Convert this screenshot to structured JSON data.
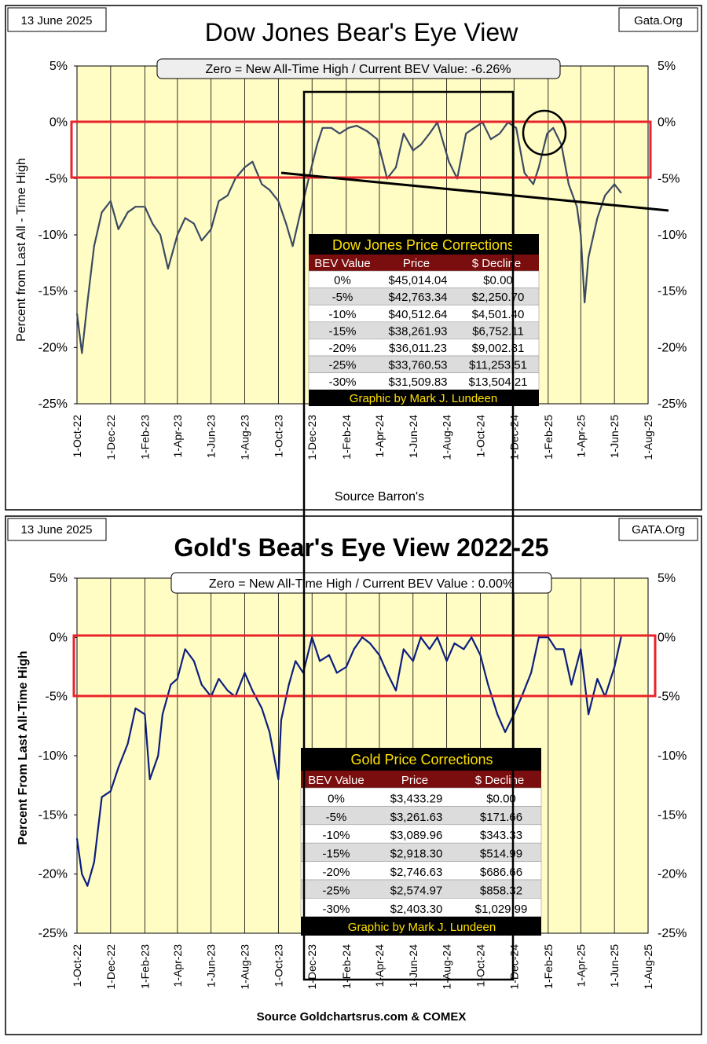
{
  "charts": {
    "dow": {
      "date": "13 June 2025",
      "source_site": "Gata.Org",
      "title": "Dow Jones Bear's Eye View",
      "subtitle": "Zero = New All-Time High / Current BEV Value:  -6.26%",
      "ylabel": "Percent  from  Last  All - Time  High",
      "footer": "Source Barron's",
      "table": {
        "title": "Dow Jones Price Corrections",
        "headers": [
          "BEV Value",
          "Price",
          "$ Decline"
        ],
        "rows": [
          [
            "0%",
            "$45,014.04",
            "$0.00"
          ],
          [
            "-5%",
            "$42,763.34",
            "$2,250.70"
          ],
          [
            "-10%",
            "$40,512.64",
            "$4,501.40"
          ],
          [
            "-15%",
            "$38,261.93",
            "$6,752.11"
          ],
          [
            "-20%",
            "$36,011.23",
            "$9,002.81"
          ],
          [
            "-25%",
            "$33,760.53",
            "$11,253.51"
          ],
          [
            "-30%",
            "$31,509.83",
            "$13,504.21"
          ]
        ],
        "footer": "Graphic by Mark J. Lundeen"
      }
    },
    "gold": {
      "date": "13 June 2025",
      "source_site": "GATA.Org",
      "title": "Gold's Bear's Eye View 2022-25",
      "subtitle": "Zero = New All-Time  High / Current  BEV Value : 0.00%",
      "ylabel": "Percent  From  Last  All-Time  High",
      "footer": "Source Goldchartsrus.com & COMEX",
      "table": {
        "title": "Gold Price Corrections",
        "headers": [
          "BEV Value",
          "Price",
          "$ Decline"
        ],
        "rows": [
          [
            "0%",
            "$3,433.29",
            "$0.00"
          ],
          [
            "-5%",
            "$3,261.63",
            "$171.66"
          ],
          [
            "-10%",
            "$3,089.96",
            "$343.33"
          ],
          [
            "-15%",
            "$2,918.30",
            "$514.99"
          ],
          [
            "-20%",
            "$2,746.63",
            "$686.66"
          ],
          [
            "-25%",
            "$2,574.97",
            "$858.32"
          ],
          [
            "-30%",
            "$2,403.30",
            "$1,029.99"
          ]
        ],
        "footer": "Graphic by Mark J. Lundeen"
      }
    }
  },
  "colors": {
    "plot_bg": "#fffdc4",
    "dow_line": "#3b4a63",
    "gold_line": "#0c1e80",
    "highlight_box": "#e8232a",
    "table_header_bg": "#7a0d0d",
    "table_title_bg": "#000000",
    "table_title_text": "#ffe100"
  },
  "chart_data": [
    {
      "type": "line",
      "title": "Dow Jones Bear's Eye View",
      "ylabel": "Percent  from  Last  All - Time  High",
      "x_ticks": [
        "1-Oct-22",
        "1-Dec-22",
        "1-Feb-23",
        "1-Apr-23",
        "1-Jun-23",
        "1-Aug-23",
        "1-Oct-23",
        "1-Dec-23",
        "1-Feb-24",
        "1-Apr-24",
        "1-Jun-24",
        "1-Aug-24",
        "1-Oct-24",
        "1-Dec-24",
        "1-Feb-25",
        "1-Apr-25",
        "1-Jun-25",
        "1-Aug-25"
      ],
      "y_ticks": [
        "5%",
        "0%",
        "-5%",
        "-10%",
        "-15%",
        "-20%",
        "-25%"
      ],
      "ylim": [
        -25,
        5
      ],
      "series": [
        {
          "x": [
            "2022-10-01",
            "2022-10-10",
            "2022-10-20",
            "2022-11-01",
            "2022-11-15",
            "2022-12-01",
            "2022-12-15",
            "2023-01-01",
            "2023-01-15",
            "2023-02-01",
            "2023-02-15",
            "2023-03-01",
            "2023-03-15",
            "2023-04-01",
            "2023-04-15",
            "2023-05-01",
            "2023-05-15",
            "2023-06-01",
            "2023-06-15",
            "2023-07-01",
            "2023-07-15",
            "2023-08-01",
            "2023-08-15",
            "2023-09-01",
            "2023-09-15",
            "2023-10-01",
            "2023-10-15",
            "2023-10-27",
            "2023-11-10",
            "2023-11-25",
            "2023-12-10",
            "2023-12-20",
            "2024-01-05",
            "2024-01-20",
            "2024-02-05",
            "2024-02-20",
            "2024-03-10",
            "2024-03-28",
            "2024-04-15",
            "2024-05-01",
            "2024-05-15",
            "2024-06-01",
            "2024-06-15",
            "2024-07-01",
            "2024-07-15",
            "2024-08-05",
            "2024-08-20",
            "2024-09-05",
            "2024-09-20",
            "2024-10-05",
            "2024-10-20",
            "2024-11-05",
            "2024-11-20",
            "2024-12-05",
            "2024-12-20",
            "2025-01-05",
            "2025-01-15",
            "2025-01-30",
            "2025-02-10",
            "2025-02-25",
            "2025-03-10",
            "2025-03-25",
            "2025-04-01",
            "2025-04-08",
            "2025-04-15",
            "2025-05-01",
            "2025-05-15",
            "2025-06-01",
            "2025-06-13"
          ],
          "y": [
            -17,
            -20.5,
            -16,
            -11,
            -8,
            -7,
            -9.5,
            -8,
            -7.5,
            -7.5,
            -9,
            -10,
            -13,
            -10,
            -8.5,
            -9,
            -10.5,
            -9.5,
            -7,
            -6.5,
            -5,
            -4,
            -3.5,
            -5.5,
            -6,
            -7,
            -9,
            -11,
            -8,
            -5,
            -2,
            -0.5,
            -0.5,
            -1,
            -0.5,
            -0.3,
            -0.8,
            -1.5,
            -5,
            -4,
            -1,
            -2.5,
            -2,
            -1,
            0,
            -3.5,
            -5,
            -1,
            -0.5,
            0,
            -1.5,
            -1,
            0,
            -0.5,
            -4.5,
            -5.5,
            -4,
            -1,
            -0.5,
            -2,
            -5.5,
            -7.5,
            -10,
            -16,
            -12,
            -8.5,
            -6.5,
            -5.5,
            -6.26
          ]
        }
      ]
    },
    {
      "type": "line",
      "title": "Gold's Bear's Eye View 2022-25",
      "ylabel": "Percent  From  Last  All-Time  High",
      "x_ticks": [
        "1-Oct-22",
        "1-Dec-22",
        "1-Feb-23",
        "1-Apr-23",
        "1-Jun-23",
        "1-Aug-23",
        "1-Oct-23",
        "1-Dec-23",
        "1-Feb-24",
        "1-Apr-24",
        "1-Jun-24",
        "1-Aug-24",
        "1-Oct-24",
        "1-Dec-24",
        "1-Feb-25",
        "1-Apr-25",
        "1-Jun-25",
        "1-Aug-25"
      ],
      "y_ticks": [
        "5%",
        "0%",
        "-5%",
        "-10%",
        "-15%",
        "-20%",
        "-25%"
      ],
      "ylim": [
        -25,
        5
      ],
      "series": [
        {
          "x": [
            "2022-10-01",
            "2022-10-10",
            "2022-10-20",
            "2022-11-01",
            "2022-11-15",
            "2022-12-01",
            "2022-12-15",
            "2023-01-01",
            "2023-01-15",
            "2023-02-01",
            "2023-02-10",
            "2023-02-25",
            "2023-03-05",
            "2023-03-20",
            "2023-04-01",
            "2023-04-15",
            "2023-05-01",
            "2023-05-15",
            "2023-06-01",
            "2023-06-15",
            "2023-07-01",
            "2023-07-15",
            "2023-08-01",
            "2023-08-15",
            "2023-09-01",
            "2023-09-15",
            "2023-10-01",
            "2023-10-06",
            "2023-10-20",
            "2023-11-01",
            "2023-11-15",
            "2023-12-01",
            "2023-12-15",
            "2024-01-01",
            "2024-01-15",
            "2024-02-01",
            "2024-02-15",
            "2024-03-01",
            "2024-03-15",
            "2024-04-01",
            "2024-04-15",
            "2024-05-01",
            "2024-05-15",
            "2024-06-01",
            "2024-06-15",
            "2024-07-01",
            "2024-07-15",
            "2024-08-01",
            "2024-08-15",
            "2024-09-01",
            "2024-09-15",
            "2024-10-01",
            "2024-10-15",
            "2024-11-01",
            "2024-11-15",
            "2024-12-01",
            "2024-12-15",
            "2025-01-01",
            "2025-01-15",
            "2025-02-01",
            "2025-02-15",
            "2025-03-01",
            "2025-03-15",
            "2025-04-01",
            "2025-04-15",
            "2025-05-01",
            "2025-05-15",
            "2025-06-01",
            "2025-06-13"
          ],
          "y": [
            -17,
            -20,
            -21,
            -19,
            -13.5,
            -13,
            -11,
            -9,
            -6,
            -6.5,
            -12,
            -10,
            -6.5,
            -4,
            -3.5,
            -1,
            -2,
            -4,
            -5,
            -3.5,
            -4.5,
            -5,
            -3,
            -4.5,
            -6,
            -8,
            -12,
            -7,
            -4,
            -2,
            -3,
            0,
            -2,
            -1.5,
            -3,
            -2.5,
            -1,
            0,
            -0.5,
            -1.5,
            -3,
            -4.5,
            -1,
            -2,
            0,
            -1,
            0,
            -2,
            -0.5,
            -1,
            0,
            -1.5,
            -4,
            -6.5,
            -8,
            -6.5,
            -5,
            -3,
            0,
            0,
            -1,
            -1,
            -4,
            -1,
            -6.5,
            -3.5,
            -5,
            -2.5,
            0
          ]
        }
      ]
    }
  ]
}
